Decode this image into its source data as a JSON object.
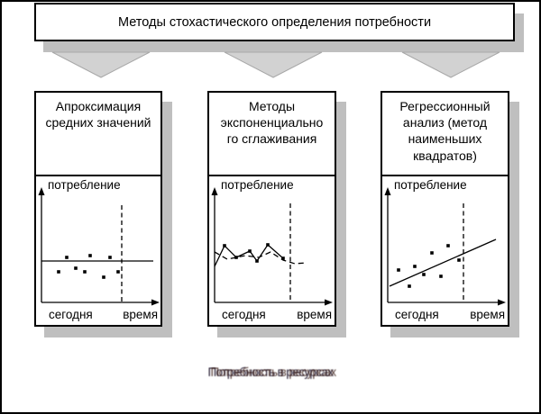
{
  "diagram": {
    "title": "Методы стохастического определения потребности",
    "caption": "Потребность в ресурсах"
  },
  "colors": {
    "background": "#ffffff",
    "border": "#000000",
    "shadow": "#bfbfbf",
    "arrow_fill": "#d2d2d2",
    "arrow_edge": "#a8a8a8",
    "line": "#000000"
  },
  "methods": [
    {
      "label": "Апроксимация\nсредних значений",
      "chart": {
        "type": "scatter-with-mean-line",
        "y_axis_label": "потребление",
        "x_axis_label": "время",
        "origin_label": "сегодня",
        "today_marker": "dashed-vertical-line",
        "mean_line": [
          [
            6,
            94
          ],
          [
            130,
            94
          ]
        ],
        "points": [
          [
            34,
            90
          ],
          [
            60,
            88
          ],
          [
            82,
            90
          ],
          [
            25,
            106
          ],
          [
            44,
            102
          ],
          [
            54,
            106
          ],
          [
            75,
            112
          ],
          [
            91,
            106
          ]
        ]
      }
    },
    {
      "label": "Методы\nэкспоненциально\nго сглаживания",
      "chart": {
        "type": "zigzag-with-smoothed-dashed-forecast",
        "y_axis_label": "потребление",
        "x_axis_label": "время",
        "origin_label": "сегодня",
        "today_marker": "dashed-vertical-line",
        "solid_series": [
          [
            6,
            100
          ],
          [
            17,
            77
          ],
          [
            30,
            90
          ],
          [
            45,
            83
          ],
          [
            53,
            94
          ],
          [
            65,
            76
          ],
          [
            82,
            91
          ]
        ],
        "solid_markers": [
          [
            17,
            77
          ],
          [
            30,
            90
          ],
          [
            45,
            83
          ],
          [
            53,
            94
          ],
          [
            65,
            76
          ],
          [
            82,
            91
          ]
        ],
        "dashed_series": [
          [
            6,
            84
          ],
          [
            20,
            92
          ],
          [
            40,
            88
          ],
          [
            55,
            90
          ],
          [
            68,
            84
          ],
          [
            82,
            93
          ],
          [
            95,
            97
          ],
          [
            108,
            96
          ]
        ]
      }
    },
    {
      "label": "Регрессионный\nанализ (метод\nнаименьших\nквадратов)",
      "chart": {
        "type": "scatter-with-regression-line",
        "y_axis_label": "потребление",
        "x_axis_label": "время",
        "origin_label": "сегодня",
        "today_marker": "dashed-vertical-line",
        "trend_line": [
          [
            8,
            122
          ],
          [
            126,
            70
          ]
        ],
        "points": [
          [
            18,
            104
          ],
          [
            30,
            122
          ],
          [
            36,
            100
          ],
          [
            46,
            109
          ],
          [
            55,
            85
          ],
          [
            65,
            111
          ],
          [
            73,
            77
          ],
          [
            85,
            93
          ]
        ]
      }
    }
  ]
}
